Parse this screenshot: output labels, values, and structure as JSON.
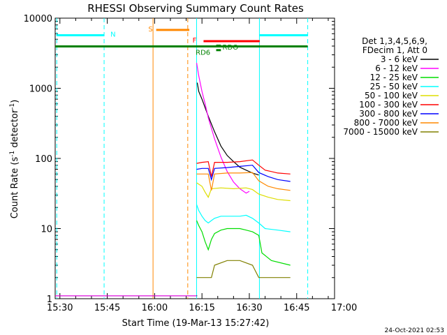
{
  "chart_data": {
    "type": "line",
    "title": "RHESSI Observing Summary Count Rates",
    "xlabel": "Start Time (19-Mar-13 15:27:42)",
    "ylabel": "Count Rate (s⁻¹ detector⁻¹)",
    "ylabel_parts": [
      "Count Rate (s",
      "-1",
      " detector",
      "-1",
      ")"
    ],
    "yscale": "log",
    "xlim_minutes": [
      15.5,
      104.0
    ],
    "ylim": [
      1,
      10000
    ],
    "xticks": [
      {
        "label": "15:30",
        "min": 17
      },
      {
        "label": "15:45",
        "min": 32
      },
      {
        "label": "16:00",
        "min": 47
      },
      {
        "label": "16:15",
        "min": 62
      },
      {
        "label": "16:30",
        "min": 77
      },
      {
        "label": "16:45",
        "min": 92
      },
      {
        "label": "17:00",
        "min": 107
      }
    ],
    "yticks": [
      {
        "label": "1",
        "v": 1
      },
      {
        "label": "10",
        "v": 10
      },
      {
        "label": "100",
        "v": 100
      },
      {
        "label": "1000",
        "v": 1000
      },
      {
        "label": "10000",
        "v": 10000
      }
    ],
    "legend_header": [
      "Det 1,3,4,5,6,9,",
      "FDecim 1, Att 0"
    ],
    "series": [
      {
        "name": "3 - 6 keV",
        "color": "#000000",
        "pre": 1.1,
        "points": [
          [
            60.5,
            1200
          ],
          [
            61,
            900
          ],
          [
            62,
            700
          ],
          [
            64,
            400
          ],
          [
            66,
            240
          ],
          [
            68,
            150
          ],
          [
            70,
            110
          ],
          [
            72,
            90
          ],
          [
            74,
            75
          ],
          [
            76,
            68
          ],
          [
            78,
            62
          ],
          [
            80,
            58
          ]
        ]
      },
      {
        "name": "6 - 12 keV",
        "color": "#ff00ff",
        "pre": 1.1,
        "points": [
          [
            60.3,
            2300
          ],
          [
            61,
            1500
          ],
          [
            62,
            900
          ],
          [
            63,
            600
          ],
          [
            64,
            380
          ],
          [
            66,
            190
          ],
          [
            68,
            105
          ],
          [
            70,
            65
          ],
          [
            72,
            46
          ],
          [
            74,
            37
          ],
          [
            76,
            32
          ],
          [
            77,
            34
          ]
        ]
      },
      {
        "name": "12 - 25 keV",
        "color": "#00dd00",
        "pre": 1.0,
        "points": [
          [
            60.3,
            13
          ],
          [
            61,
            11
          ],
          [
            62,
            9
          ],
          [
            63,
            6.5
          ],
          [
            64,
            5
          ],
          [
            65,
            7
          ],
          [
            66,
            8.5
          ],
          [
            68,
            9.5
          ],
          [
            70,
            10
          ],
          [
            72,
            10
          ],
          [
            74,
            10
          ],
          [
            76,
            9.5
          ],
          [
            78,
            9
          ],
          [
            80,
            8
          ],
          [
            81,
            4.5
          ],
          [
            84,
            3.5
          ],
          [
            90,
            3
          ]
        ]
      },
      {
        "name": "25 - 50 keV",
        "color": "#00ffff",
        "pre": 1.0,
        "points": [
          [
            60.3,
            22
          ],
          [
            61,
            18
          ],
          [
            62,
            15
          ],
          [
            63,
            13
          ],
          [
            64,
            12
          ],
          [
            65,
            13
          ],
          [
            66,
            14
          ],
          [
            68,
            15
          ],
          [
            70,
            15
          ],
          [
            72,
            15
          ],
          [
            74,
            15
          ],
          [
            76,
            15.5
          ],
          [
            78,
            14
          ],
          [
            80,
            12
          ],
          [
            82,
            10
          ],
          [
            86,
            9.5
          ],
          [
            90,
            9
          ]
        ]
      },
      {
        "name": "50 - 100 keV",
        "color": "#dddd00",
        "pre": 1.0,
        "points": [
          [
            60.3,
            45
          ],
          [
            62,
            40
          ],
          [
            63,
            33
          ],
          [
            64,
            28
          ],
          [
            65,
            37
          ],
          [
            68,
            38
          ],
          [
            72,
            37
          ],
          [
            76,
            38
          ],
          [
            78,
            36
          ],
          [
            80,
            31
          ],
          [
            83,
            28
          ],
          [
            86,
            26
          ],
          [
            90,
            25
          ]
        ]
      },
      {
        "name": "100 - 300 keV",
        "color": "#ff0000",
        "pre": 1.0,
        "points": [
          [
            60.3,
            85
          ],
          [
            62,
            88
          ],
          [
            64,
            90
          ],
          [
            65,
            55
          ],
          [
            66,
            88
          ],
          [
            70,
            88
          ],
          [
            74,
            90
          ],
          [
            78,
            95
          ],
          [
            80,
            80
          ],
          [
            82,
            68
          ],
          [
            84,
            65
          ],
          [
            86,
            62
          ],
          [
            90,
            60
          ]
        ]
      },
      {
        "name": "300 - 800 keV",
        "color": "#0000ff",
        "pre": 1.0,
        "points": [
          [
            60.3,
            70
          ],
          [
            62,
            72
          ],
          [
            64,
            72
          ],
          [
            65,
            50
          ],
          [
            66,
            72
          ],
          [
            70,
            74
          ],
          [
            74,
            77
          ],
          [
            78,
            80
          ],
          [
            80,
            63
          ],
          [
            83,
            55
          ],
          [
            86,
            50
          ],
          [
            90,
            47
          ]
        ]
      },
      {
        "name": "800 - 7000 keV",
        "color": "#ff8800",
        "pre": 1.0,
        "points": [
          [
            60.3,
            60
          ],
          [
            62,
            60
          ],
          [
            64,
            60
          ],
          [
            65,
            35
          ],
          [
            66,
            60
          ],
          [
            70,
            62
          ],
          [
            74,
            62
          ],
          [
            78,
            63
          ],
          [
            80,
            48
          ],
          [
            83,
            40
          ],
          [
            86,
            37
          ],
          [
            90,
            35
          ]
        ]
      },
      {
        "name": "7000 - 15000 keV",
        "color": "#808000",
        "pre": 1.0,
        "points": [
          [
            60.3,
            2
          ],
          [
            65,
            2
          ],
          [
            66,
            3
          ],
          [
            70,
            3.5
          ],
          [
            74,
            3.5
          ],
          [
            78,
            3
          ],
          [
            80,
            2
          ],
          [
            84,
            2
          ],
          [
            90,
            2
          ]
        ]
      }
    ],
    "vlines": [
      {
        "min": 16,
        "color": "#00ffff",
        "dash": true
      },
      {
        "min": 31,
        "color": "#00ffff",
        "dash": true
      },
      {
        "min": 46.5,
        "color": "#ff8800",
        "dash": false
      },
      {
        "min": 57.5,
        "color": "#ff8800",
        "dash": true
      },
      {
        "min": 60.3,
        "color": "#00ffff",
        "dash": false
      },
      {
        "min": 80.2,
        "color": "#00ffff",
        "dash": false
      },
      {
        "min": 95.5,
        "color": "#00ffff",
        "dash": true
      }
    ],
    "flag_bars": [
      {
        "label": "N",
        "color": "#00ffff",
        "x0": 16,
        "x1": 31,
        "v": 5700,
        "w": 3,
        "lx": 33,
        "lv": 6000
      },
      {
        "label": "N",
        "color": "#00ffff",
        "x0": 80.2,
        "x1": 95.5,
        "v": 5700,
        "w": 3,
        "lx": null,
        "lv": null
      },
      {
        "label": "S",
        "color": "#ff8800",
        "x0": 47.5,
        "x1": 58,
        "v": 6800,
        "w": 3,
        "lx": 45,
        "lv": 7100
      },
      {
        "label": "F",
        "color": "#ff0000",
        "x0": 62.5,
        "x1": 80.3,
        "v": 4700,
        "w": 3,
        "lx": 59,
        "lv": 4900
      },
      {
        "label": "RDO",
        "color": "#008000",
        "x0": 66.5,
        "x1": 68,
        "v": 4050,
        "w": 3,
        "lx": 68.5,
        "lv": 3900
      },
      {
        "label": "RD6",
        "color": "#008000",
        "x0": 66.5,
        "x1": 68,
        "v": 3500,
        "w": 3,
        "lx": 60,
        "lv": 3300
      },
      {
        "label": "",
        "color": "#008000",
        "x0": 15.5,
        "x1": 95.5,
        "v": 3950,
        "w": 3,
        "lx": null,
        "lv": null
      }
    ],
    "footer_timestamp": "24-Oct-2021 02:53"
  }
}
